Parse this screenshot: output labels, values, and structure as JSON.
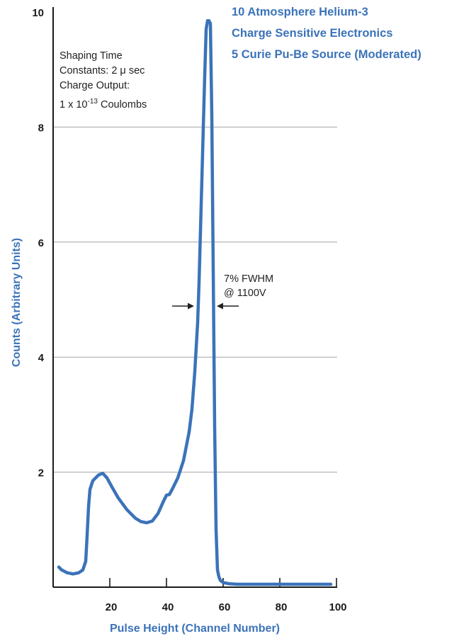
{
  "chart_data": {
    "type": "line",
    "title": [
      "10 Atmosphere Helium-3",
      "Charge Sensitive Electronics",
      "5 Curie Pu-Be Source (Moderated)"
    ],
    "xlabel": "Pulse Height (Channel Number)",
    "ylabel": "Counts (Arbitrary Units)",
    "xlim": [
      0,
      100
    ],
    "ylim": [
      0,
      10
    ],
    "xticks": [
      "20",
      "40",
      "60",
      "80",
      "100"
    ],
    "xtick_values": [
      20,
      40,
      60,
      80,
      100
    ],
    "yticks": [
      "2",
      "4",
      "6",
      "8",
      "10"
    ],
    "ytick_values": [
      2,
      4,
      6,
      8,
      10
    ],
    "grid": "horizontal",
    "series": [
      {
        "x": [
          2,
          3,
          5,
          7,
          9,
          10.5,
          11.5,
          12,
          12.5,
          13,
          14,
          16,
          17.5,
          19,
          21,
          23,
          26,
          29,
          31,
          33,
          35,
          37,
          39,
          40,
          41,
          42,
          44,
          46,
          48,
          49,
          50,
          51,
          51.5,
          52,
          52.5,
          53,
          53.5,
          54,
          54.5,
          55,
          55.5,
          56,
          56.5,
          57,
          57.5,
          58,
          58.5,
          59,
          60,
          62,
          65,
          70,
          80,
          90,
          98
        ],
        "y": [
          0.35,
          0.3,
          0.25,
          0.23,
          0.25,
          0.3,
          0.45,
          0.9,
          1.4,
          1.7,
          1.85,
          1.95,
          1.98,
          1.9,
          1.72,
          1.55,
          1.35,
          1.2,
          1.14,
          1.12,
          1.15,
          1.28,
          1.5,
          1.6,
          1.61,
          1.7,
          1.9,
          2.2,
          2.7,
          3.1,
          3.75,
          4.6,
          5.3,
          6.2,
          7.1,
          8.0,
          8.9,
          9.7,
          9.85,
          9.85,
          9.8,
          8.2,
          5.5,
          2.8,
          1.0,
          0.3,
          0.18,
          0.12,
          0.08,
          0.06,
          0.05,
          0.05,
          0.05,
          0.05,
          0.05
        ]
      }
    ],
    "annotations": {
      "fwhm": [
        "7% FWHM",
        "@ 1100V"
      ],
      "fwhm_at": 4.9,
      "shaping": [
        "Shaping Time",
        "Constants: 2 μ sec",
        "Charge Output:"
      ],
      "charge": {
        "base": "1 x 10",
        "exponent": "-13",
        "unit": " Coulombs"
      }
    }
  },
  "colors": {
    "curve": "#3b73b9",
    "accent_text": "#3b73b9",
    "grid": "#a6a6a6",
    "axis": "#1a1a1a"
  }
}
